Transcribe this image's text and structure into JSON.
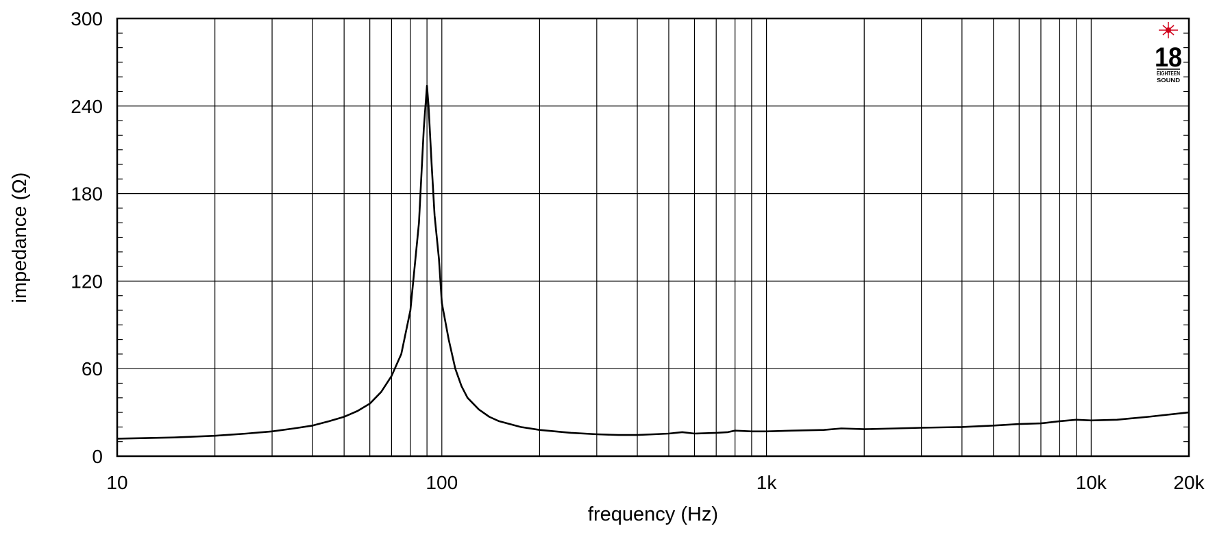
{
  "chart_data": {
    "type": "line",
    "xlabel": "frequency (Hz)",
    "ylabel": "impedance (Ω)",
    "x_scale": "log",
    "xlim": [
      10,
      20000
    ],
    "ylim": [
      0,
      300
    ],
    "x_ticks": [
      {
        "value": 10,
        "label": "10"
      },
      {
        "value": 100,
        "label": "100"
      },
      {
        "value": 1000,
        "label": "1k"
      },
      {
        "value": 10000,
        "label": "10k"
      },
      {
        "value": 20000,
        "label": "20k"
      }
    ],
    "y_ticks": [
      {
        "value": 0,
        "label": "0"
      },
      {
        "value": 60,
        "label": "60"
      },
      {
        "value": 120,
        "label": "120"
      },
      {
        "value": 180,
        "label": "180"
      },
      {
        "value": 240,
        "label": "240"
      },
      {
        "value": 300,
        "label": "300"
      }
    ],
    "grid": true,
    "series": [
      {
        "points": [
          [
            10,
            12
          ],
          [
            15,
            12.8
          ],
          [
            20,
            14
          ],
          [
            25,
            15.5
          ],
          [
            30,
            17
          ],
          [
            35,
            19
          ],
          [
            40,
            21
          ],
          [
            45,
            24
          ],
          [
            50,
            27
          ],
          [
            55,
            31
          ],
          [
            60,
            36
          ],
          [
            65,
            44
          ],
          [
            70,
            55
          ],
          [
            75,
            70
          ],
          [
            80,
            100
          ],
          [
            85,
            160
          ],
          [
            88,
            225
          ],
          [
            90,
            254
          ],
          [
            91,
            240
          ],
          [
            93,
            200
          ],
          [
            95,
            165
          ],
          [
            98,
            135
          ],
          [
            100,
            105
          ],
          [
            105,
            80
          ],
          [
            110,
            60
          ],
          [
            115,
            48
          ],
          [
            120,
            40
          ],
          [
            130,
            32
          ],
          [
            140,
            27
          ],
          [
            150,
            24
          ],
          [
            175,
            20
          ],
          [
            200,
            18
          ],
          [
            250,
            16
          ],
          [
            300,
            15
          ],
          [
            350,
            14.5
          ],
          [
            400,
            14.5
          ],
          [
            450,
            15
          ],
          [
            500,
            15.5
          ],
          [
            550,
            16.5
          ],
          [
            600,
            15.5
          ],
          [
            700,
            16
          ],
          [
            760,
            16.5
          ],
          [
            800,
            17.5
          ],
          [
            900,
            17
          ],
          [
            1000,
            17
          ],
          [
            1200,
            17.5
          ],
          [
            1500,
            18
          ],
          [
            1700,
            19
          ],
          [
            2000,
            18.5
          ],
          [
            2500,
            19
          ],
          [
            3000,
            19.5
          ],
          [
            4000,
            20
          ],
          [
            5000,
            21
          ],
          [
            6000,
            22
          ],
          [
            7000,
            22.5
          ],
          [
            8000,
            24
          ],
          [
            9000,
            25
          ],
          [
            10000,
            24.5
          ],
          [
            12000,
            25
          ],
          [
            15000,
            27
          ],
          [
            20000,
            30
          ]
        ]
      }
    ]
  },
  "logo": {
    "number": "18",
    "line1": "EIGHTEEN",
    "line2": "SOUND",
    "color": "#d0021b"
  }
}
